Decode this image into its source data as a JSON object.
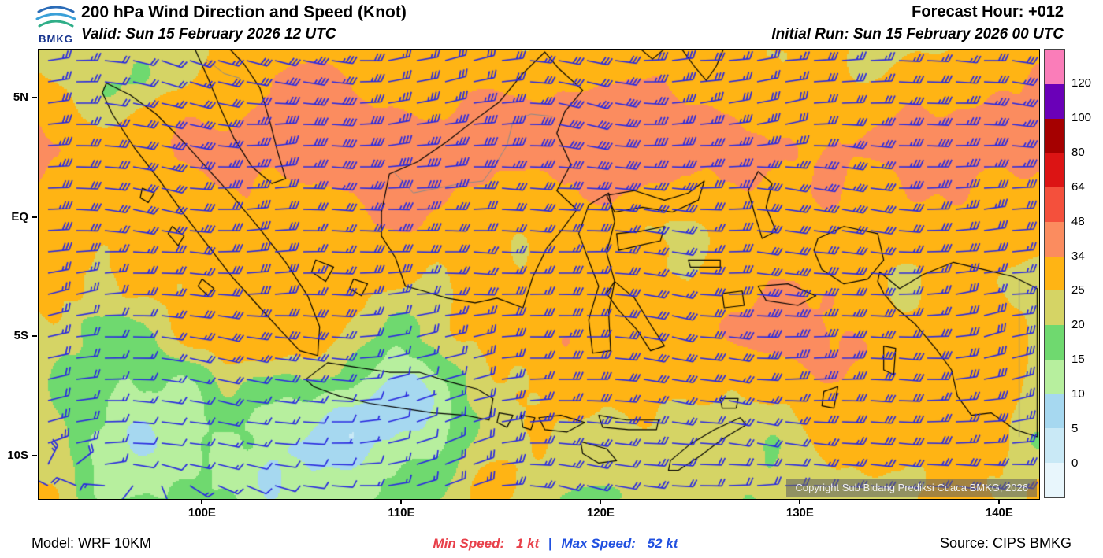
{
  "header": {
    "logo_text": "BMKG",
    "title": "200 hPa Wind Direction and Speed (Knot)",
    "valid_label": "Valid: Sun 15 February 2026 12 UTC",
    "forecast_hour_label": "Forecast Hour: +012",
    "initial_run_label": "Initial Run: Sun 15 February 2026 00 UTC"
  },
  "map_overlay": {
    "copyright": "Copyright Sub Bidang Prediksi Cuaca BMKG, 2026"
  },
  "footer": {
    "model_label": "Model: WRF 10KM",
    "min_speed_label": "Min Speed:",
    "min_speed_value": "1 kt",
    "separator": "|",
    "max_speed_label": "Max Speed:",
    "max_speed_value": "52 kt",
    "source_label": "Source: CIPS BMKG"
  },
  "chart_data": {
    "type": "heatmap",
    "title": "200 hPa Wind Direction and Speed (Knot)",
    "variable": "200 hPa wind speed filled contours with wind barbs",
    "units": "knot",
    "valid_time": "Sun 15 February 2026 12 UTC",
    "initial_run": "Sun 15 February 2026 00 UTC",
    "forecast_hour": "+012",
    "model": "WRF 10KM",
    "source": "CIPS BMKG",
    "min_speed_kt": 1,
    "max_speed_kt": 52,
    "lon_range_deg_east": [
      91.8,
      142.0
    ],
    "lat_range_deg_north": [
      -11.8,
      7.0
    ],
    "x_ticks": [
      {
        "lon": 100,
        "label": "100E"
      },
      {
        "lon": 110,
        "label": "110E"
      },
      {
        "lon": 120,
        "label": "120E"
      },
      {
        "lon": 130,
        "label": "130E"
      },
      {
        "lon": 140,
        "label": "140E"
      }
    ],
    "y_ticks": [
      {
        "lat": 5,
        "label": "5N"
      },
      {
        "lat": 0,
        "label": "EQ"
      },
      {
        "lat": -5,
        "label": "5S"
      },
      {
        "lat": -10,
        "label": "10S"
      }
    ],
    "colorbar": {
      "tick_labels_top_to_bottom": [
        "120",
        "100",
        "80",
        "64",
        "48",
        "34",
        "25",
        "20",
        "15",
        "10",
        "5",
        "0"
      ],
      "segment_colors_top_to_bottom": [
        "#fa7db9",
        "#6a00b8",
        "#a50000",
        "#dc1414",
        "#f4503c",
        "#fb8c5f",
        "#ffb414",
        "#d5d465",
        "#6fd96f",
        "#b7ef9e",
        "#a6d8f0",
        "#c9e9f6",
        "#e8f6fc"
      ]
    },
    "wind_barb_color": "#2a2ae0",
    "coastline_color": "#000000",
    "grid": false,
    "legend_position": "right"
  }
}
